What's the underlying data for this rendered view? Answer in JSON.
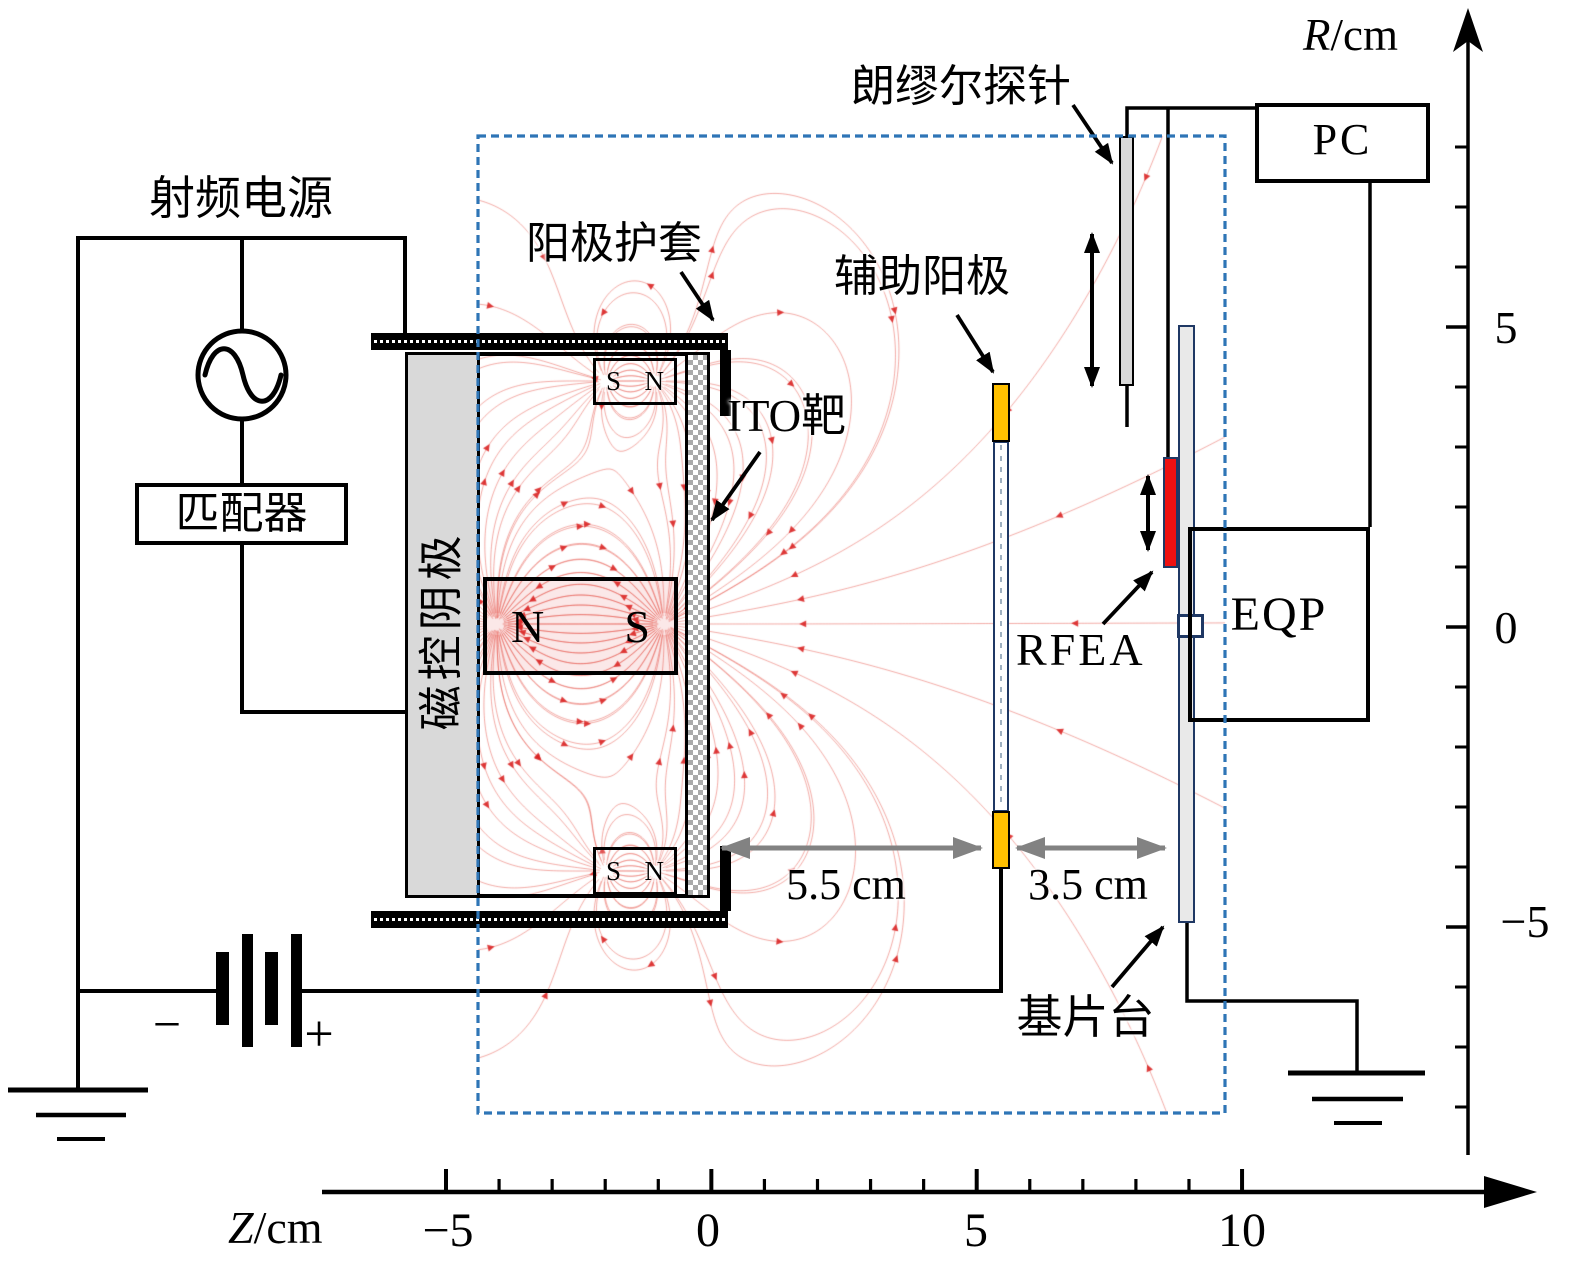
{
  "figure": {
    "labels": {
      "rf_power": "射频电源",
      "matcher": "匹配器",
      "magnetron_cathode": "磁控阴极",
      "anode_sheath": "阳极护套",
      "ito_target": "ITO靶",
      "auxiliary_anode": "辅助阳极",
      "langmuir_probe": "朗缪尔探针",
      "rfea": "RFEA",
      "eqp": "EQP",
      "pc": "PC",
      "substrate_stage": "基片台"
    },
    "magnets": {
      "large": {
        "left_pole": "N",
        "right_pole": "S"
      },
      "top_small": {
        "left_pole": "S",
        "right_pole": "N"
      },
      "bottom_small": {
        "left_pole": "S",
        "right_pole": "N"
      }
    },
    "battery": {
      "negative_label": "−",
      "positive_label": "+"
    },
    "distances": {
      "target_to_aux_anode": "5.5 cm",
      "aux_anode_to_substrate": "3.5 cm"
    },
    "axes": {
      "r": {
        "symbol": "R",
        "unit": "/cm",
        "ticks": [
          "5",
          "0",
          "−5"
        ]
      },
      "z": {
        "symbol": "Z",
        "unit": "/cm",
        "ticks": [
          "−5",
          "0",
          "5",
          "10"
        ]
      }
    },
    "colors": {
      "chamber_border": "#2E75B6",
      "field_line": "#E2423A",
      "field_arrow": "#D92121",
      "electrode_orange": "#FFC000",
      "rfea_red": "#EE1111",
      "component_border": "#1F3864",
      "metal_gray": "#D9D9D9"
    }
  }
}
